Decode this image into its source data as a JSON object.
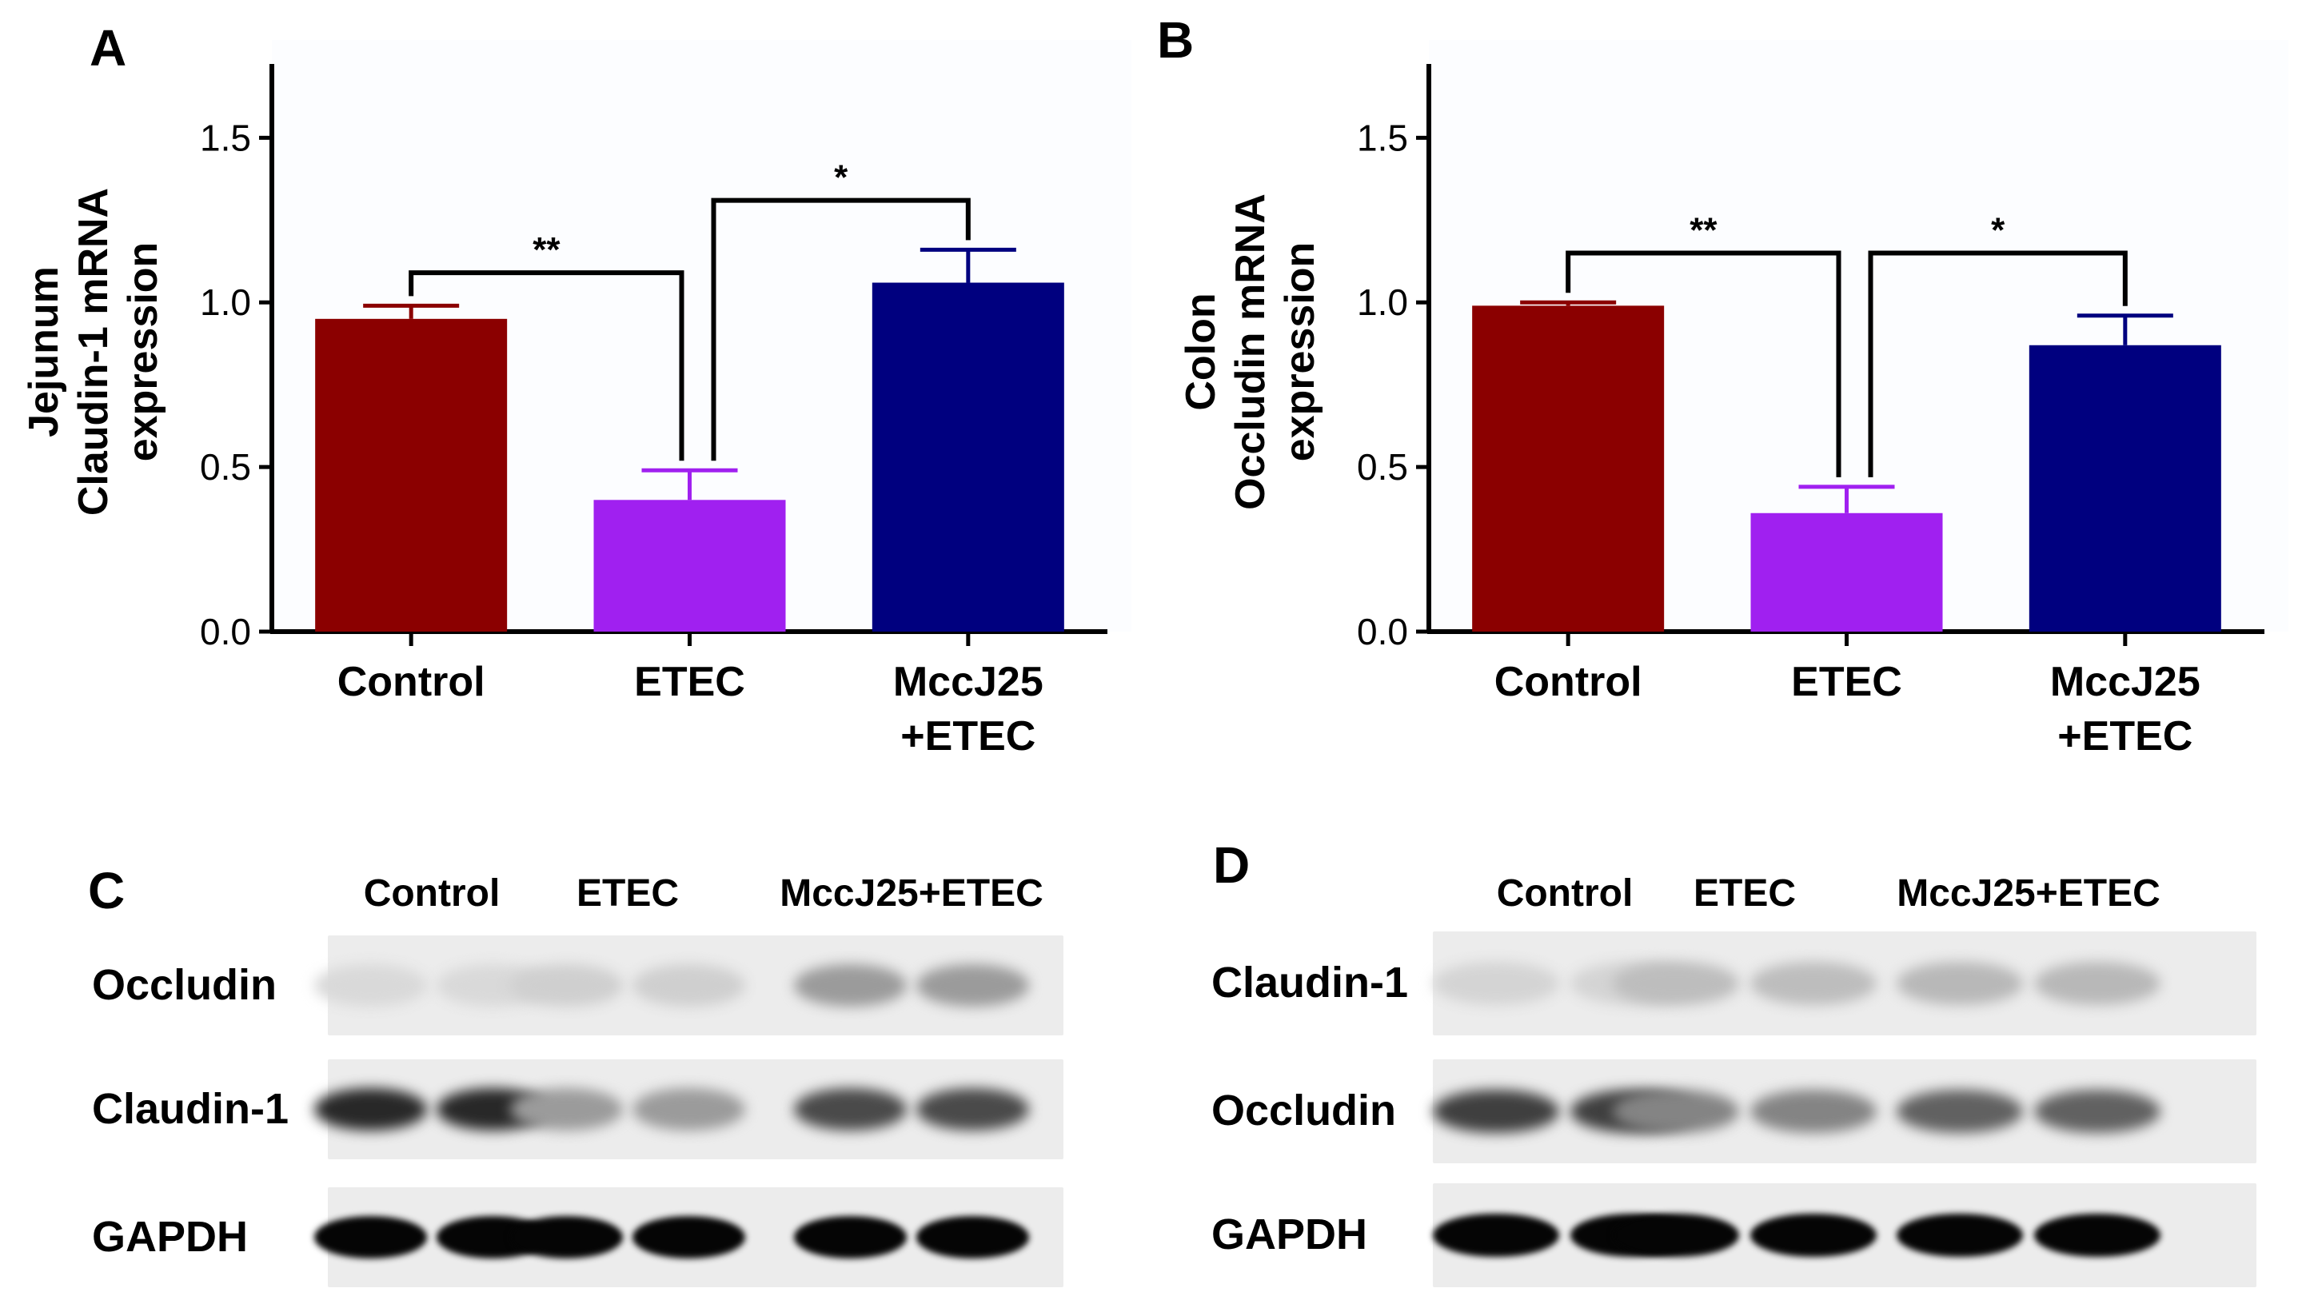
{
  "panels": {
    "A": "A",
    "B": "B",
    "C": "C",
    "D": "D"
  },
  "chart_data": [
    {
      "type": "bar",
      "panel": "A",
      "ylabel_lines": [
        "Jejunum",
        "Claudin-1 mRNA",
        "expression"
      ],
      "categories": [
        [
          "Control"
        ],
        [
          "ETEC"
        ],
        [
          "MccJ25",
          "+ETEC"
        ]
      ],
      "values": [
        0.95,
        0.4,
        1.06
      ],
      "errors": [
        0.04,
        0.09,
        0.1
      ],
      "colors": [
        "#8b0000",
        "#a020f0",
        "#00007f"
      ],
      "ylim": [
        0,
        1.7
      ],
      "yticks": [
        "0.0",
        "0.5",
        "1.0",
        "1.5"
      ],
      "significance": [
        {
          "from": 0,
          "to": 1,
          "label": "**",
          "level": 1.09
        },
        {
          "from": 1,
          "to": 2,
          "label": "*",
          "level": 1.31
        }
      ]
    },
    {
      "type": "bar",
      "panel": "B",
      "ylabel_lines": [
        "Colon",
        "Occludin mRNA",
        "expression"
      ],
      "categories": [
        [
          "Control"
        ],
        [
          "ETEC"
        ],
        [
          "MccJ25",
          "+ETEC"
        ]
      ],
      "values": [
        0.99,
        0.36,
        0.87
      ],
      "errors": [
        0.01,
        0.08,
        0.09
      ],
      "colors": [
        "#8b0000",
        "#a020f0",
        "#00007f"
      ],
      "ylim": [
        0,
        1.7
      ],
      "yticks": [
        "0.0",
        "0.5",
        "1.0",
        "1.5"
      ],
      "significance": [
        {
          "from": 0,
          "to": 1,
          "label": "**",
          "level": 1.15
        },
        {
          "from": 1,
          "to": 2,
          "label": "*",
          "level": 1.15
        }
      ]
    }
  ],
  "blots": {
    "C": {
      "lanes": [
        "Control",
        "ETEC",
        "MccJ25+ETEC"
      ],
      "rows": [
        {
          "label": "Occludin",
          "intensity": [
            0.08,
            0.12,
            0.35
          ]
        },
        {
          "label": "Claudin-1",
          "intensity": [
            0.85,
            0.35,
            0.7
          ]
        },
        {
          "label": "GAPDH",
          "intensity": [
            1.0,
            1.0,
            1.0
          ]
        }
      ]
    },
    "D": {
      "lanes": [
        "Control",
        "ETEC",
        "MccJ25+ETEC"
      ],
      "rows": [
        {
          "label": "Claudin-1",
          "intensity": [
            0.1,
            0.2,
            0.22
          ]
        },
        {
          "label": "Occludin",
          "intensity": [
            0.75,
            0.45,
            0.6
          ]
        },
        {
          "label": "GAPDH",
          "intensity": [
            1.0,
            1.0,
            1.0
          ]
        }
      ]
    }
  }
}
